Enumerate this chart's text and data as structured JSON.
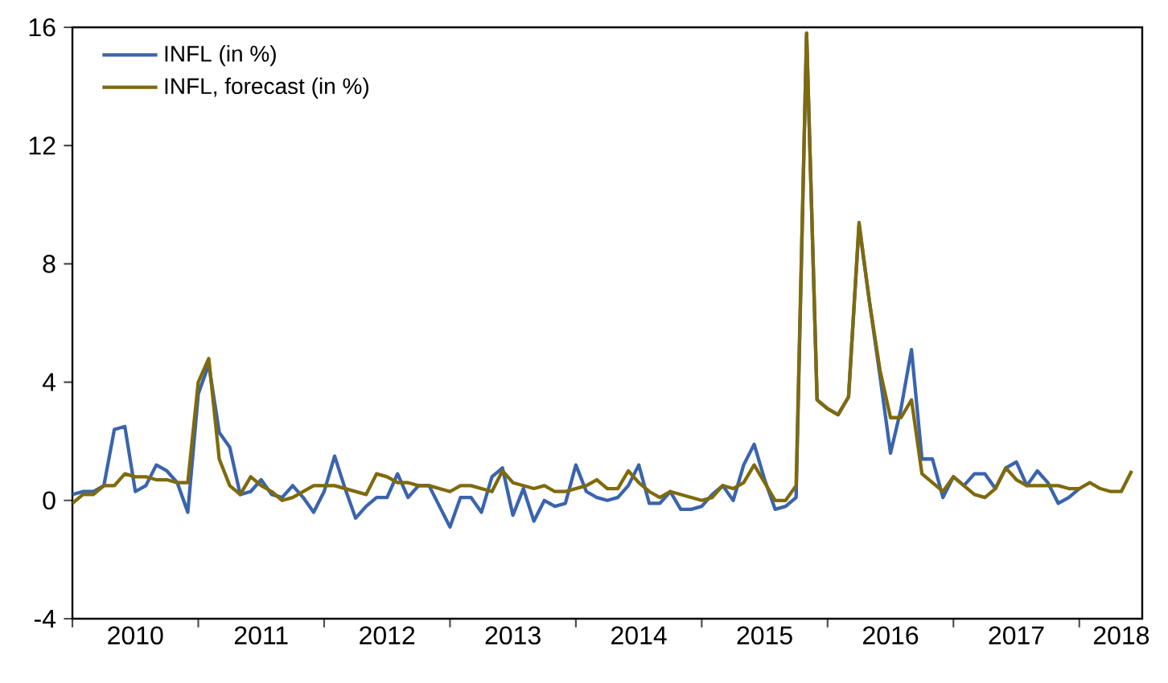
{
  "chart_data": {
    "type": "line",
    "x": [
      "2010-01",
      "2010-02",
      "2010-03",
      "2010-04",
      "2010-05",
      "2010-06",
      "2010-07",
      "2010-08",
      "2010-09",
      "2010-10",
      "2010-11",
      "2010-12",
      "2011-01",
      "2011-02",
      "2011-03",
      "2011-04",
      "2011-05",
      "2011-06",
      "2011-07",
      "2011-08",
      "2011-09",
      "2011-10",
      "2011-11",
      "2011-12",
      "2012-01",
      "2012-02",
      "2012-03",
      "2012-04",
      "2012-05",
      "2012-06",
      "2012-07",
      "2012-08",
      "2012-09",
      "2012-10",
      "2012-11",
      "2012-12",
      "2013-01",
      "2013-02",
      "2013-03",
      "2013-04",
      "2013-05",
      "2013-06",
      "2013-07",
      "2013-08",
      "2013-09",
      "2013-10",
      "2013-11",
      "2013-12",
      "2014-01",
      "2014-02",
      "2014-03",
      "2014-04",
      "2014-05",
      "2014-06",
      "2014-07",
      "2014-08",
      "2014-09",
      "2014-10",
      "2014-11",
      "2014-12",
      "2015-01",
      "2015-02",
      "2015-03",
      "2015-04",
      "2015-05",
      "2015-06",
      "2015-07",
      "2015-08",
      "2015-09",
      "2015-10",
      "2015-11",
      "2015-12",
      "2016-01",
      "2016-02",
      "2016-03",
      "2016-04",
      "2016-05",
      "2016-06",
      "2016-07",
      "2016-08",
      "2016-09",
      "2016-10",
      "2016-11",
      "2016-12",
      "2017-01",
      "2017-02",
      "2017-03",
      "2017-04",
      "2017-05",
      "2017-06",
      "2017-07",
      "2017-08",
      "2017-09",
      "2017-10",
      "2017-11",
      "2017-12",
      "2018-01",
      "2018-02",
      "2018-03",
      "2018-04",
      "2018-05",
      "2018-06"
    ],
    "series": [
      {
        "name": "INFL (in %)",
        "color": "#3a64ad",
        "values": [
          0.2,
          0.3,
          0.3,
          0.5,
          2.4,
          2.5,
          0.3,
          0.5,
          1.2,
          1.0,
          0.6,
          -0.4,
          3.6,
          4.6,
          2.3,
          1.8,
          0.2,
          0.3,
          0.7,
          0.2,
          0.1,
          0.5,
          0.1,
          -0.4,
          0.3,
          1.5,
          0.4,
          -0.6,
          -0.2,
          0.1,
          0.1,
          0.9,
          0.1,
          0.5,
          0.5,
          -0.2,
          -0.9,
          0.1,
          0.1,
          -0.4,
          0.8,
          1.1,
          -0.5,
          0.4,
          -0.7,
          0.0,
          -0.2,
          -0.1,
          1.2,
          0.3,
          0.1,
          0.0,
          0.1,
          0.5,
          1.2,
          -0.1,
          -0.1,
          0.3,
          -0.3,
          -0.3,
          -0.2,
          0.2,
          0.5,
          0.0,
          1.2,
          1.9,
          0.7,
          -0.3,
          -0.2,
          0.1,
          15.8,
          3.4,
          3.1,
          2.9,
          3.5,
          9.3,
          6.7,
          4.2,
          1.6,
          3.1,
          5.1,
          1.4,
          1.4,
          0.1,
          0.8,
          0.5,
          0.9,
          0.9,
          0.4,
          1.1,
          1.3,
          0.5,
          1.0,
          0.6,
          -0.1,
          0.1,
          0.4,
          null,
          null,
          null,
          null,
          null
        ]
      },
      {
        "name": "INFL, forecast (in %)",
        "color": "#7f6a0c",
        "values": [
          -0.1,
          0.2,
          0.2,
          0.5,
          0.5,
          0.9,
          0.8,
          0.8,
          0.7,
          0.7,
          0.6,
          0.6,
          4.0,
          4.8,
          1.4,
          0.5,
          0.2,
          0.8,
          0.5,
          0.3,
          0.0,
          0.1,
          0.3,
          0.5,
          0.5,
          0.5,
          0.4,
          0.3,
          0.2,
          0.9,
          0.8,
          0.6,
          0.6,
          0.5,
          0.5,
          0.4,
          0.3,
          0.5,
          0.5,
          0.4,
          0.3,
          1.0,
          0.6,
          0.5,
          0.4,
          0.5,
          0.3,
          0.3,
          0.4,
          0.5,
          0.7,
          0.4,
          0.4,
          1.0,
          0.6,
          0.3,
          0.1,
          0.3,
          0.2,
          0.1,
          0.0,
          0.1,
          0.5,
          0.4,
          0.6,
          1.2,
          0.6,
          0.0,
          0.0,
          0.5,
          15.8,
          3.4,
          3.1,
          2.9,
          3.5,
          9.4,
          6.7,
          4.4,
          2.8,
          2.8,
          3.4,
          0.9,
          0.6,
          0.3,
          0.8,
          0.5,
          0.2,
          0.1,
          0.4,
          1.1,
          0.7,
          0.5,
          0.5,
          0.5,
          0.5,
          0.4,
          0.4,
          0.6,
          0.4,
          0.3,
          0.3,
          1.0
        ]
      }
    ],
    "xlim": [
      "2010-01",
      "2018-07"
    ],
    "xticks": [
      {
        "value": "2010-01",
        "label": null
      },
      {
        "value": "2011-01",
        "label": null
      },
      {
        "value": "2012-01",
        "label": null
      },
      {
        "value": "2013-01",
        "label": null
      },
      {
        "value": "2014-01",
        "label": null
      },
      {
        "value": "2015-01",
        "label": null
      },
      {
        "value": "2016-01",
        "label": null
      },
      {
        "value": "2017-01",
        "label": null
      },
      {
        "value": "2018-01",
        "label": null
      },
      {
        "value": "2010-07",
        "label": "2010"
      },
      {
        "value": "2011-07",
        "label": "2011"
      },
      {
        "value": "2012-07",
        "label": "2012"
      },
      {
        "value": "2013-07",
        "label": "2013"
      },
      {
        "value": "2014-07",
        "label": "2014"
      },
      {
        "value": "2015-07",
        "label": "2015"
      },
      {
        "value": "2016-07",
        "label": "2016"
      },
      {
        "value": "2017-07",
        "label": "2017"
      },
      {
        "value": "2018-05",
        "label": "2018"
      }
    ],
    "ylim": [
      -4,
      16
    ],
    "yticks": [
      -4,
      0,
      4,
      8,
      12,
      16
    ],
    "legend": "top left"
  }
}
